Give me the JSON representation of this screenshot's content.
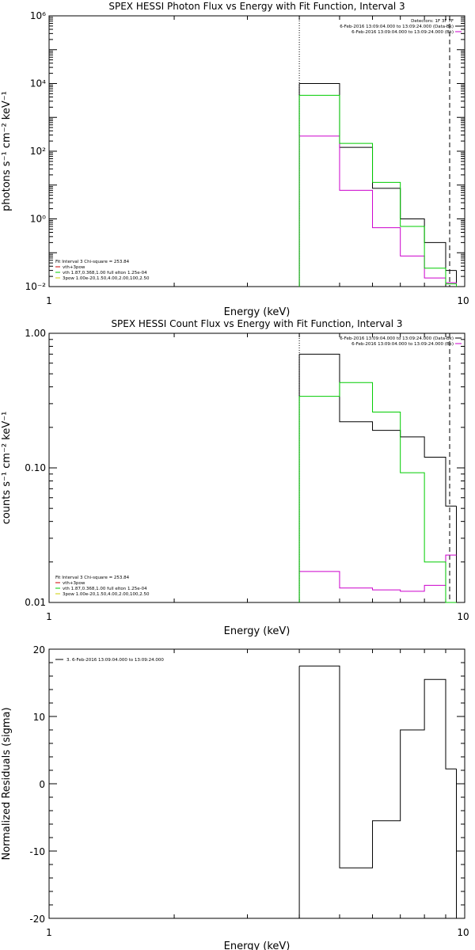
{
  "colors": {
    "data": "#000000",
    "background": "#cc00cc",
    "model": "#00cc00",
    "legend_line1": "#cc0000",
    "legend_line3": "#cccc00"
  },
  "chart_data": [
    {
      "type": "line",
      "title": "SPEX HESSI Photon Flux vs Energy with Fit Function, Interval 3",
      "xlabel": "Energy (keV)",
      "ylabel": "photons s⁻¹ cm⁻² keV⁻¹",
      "xscale": "log",
      "yscale": "log",
      "xlim": [
        1,
        10
      ],
      "ylim": [
        0.01,
        1000000
      ],
      "x_ticks": [
        "1",
        "10"
      ],
      "y_ticks": [
        "10⁻²",
        "10⁰",
        "10²",
        "10⁴",
        "10⁶"
      ],
      "bin_edges": [
        4,
        5,
        6,
        7,
        8,
        9
      ],
      "series": [
        {
          "name": "6-Feb-2016 13:09:04.000 to 13:09:24.000 (Data-Bk)",
          "color": "#000000",
          "values": [
            10000,
            130,
            8,
            1.0,
            0.2,
            0.03
          ],
          "edge_x": [
            4,
            9.55
          ]
        },
        {
          "name": "6-Feb-2016 13:09:04.000 to 13:09:24.000 (Bk)",
          "color": "#cc00cc",
          "values": [
            280,
            7,
            0.55,
            0.08,
            0.018,
            0.013
          ],
          "edge_x": [
            4,
            9.55
          ]
        },
        {
          "name": "vth 1.87,0.368,1.00 full elton 1.25e-04",
          "color": "#00cc00",
          "values": [
            4500,
            170,
            12,
            0.6,
            0.035,
            0.012
          ],
          "edge_x": [
            4,
            9.55
          ]
        }
      ],
      "energy_range_lines": [
        4.0,
        9.2
      ],
      "legend_topright": {
        "header": "Detectors: 1F 3F 7F",
        "lines": [
          {
            "text": "6-Feb-2016 13:09:04.000 to 13:09:24.000 (Data-Bk)",
            "color": "#000000"
          },
          {
            "text": "6-Feb-2016 13:09:04.000 to 13:09:24.000 (Bk)",
            "color": "#cc00cc"
          }
        ]
      },
      "legend_bottomleft": {
        "header": "Fit Interval 3   Chi-square = 253.84",
        "lines": [
          {
            "text": "vth+3pow",
            "color": "#cc0000"
          },
          {
            "text": "vth 1.87,0.368,1.00  full elton 1.25e-04",
            "color": "#00cc00"
          },
          {
            "text": "3pow 1.00e-20,1.50,4.00,2.00,100,2.50",
            "color": "#cccc00"
          }
        ]
      }
    },
    {
      "type": "line",
      "title": "SPEX HESSI Count Flux vs Energy with Fit Function, Interval 3",
      "xlabel": "Energy (keV)",
      "ylabel": "counts s⁻¹ cm⁻² keV⁻¹",
      "xscale": "log",
      "yscale": "log",
      "xlim": [
        1,
        10
      ],
      "ylim": [
        0.01,
        1.0
      ],
      "x_ticks": [
        "1",
        "10"
      ],
      "y_ticks": [
        "0.01",
        "0.10",
        "1.00"
      ],
      "bin_edges": [
        4,
        5,
        6,
        7,
        8,
        9
      ],
      "series": [
        {
          "name": "6-Feb-2016 13:09:04.000 to 13:09:24.000 (Data-Bk)",
          "color": "#000000",
          "values": [
            0.7,
            0.22,
            0.19,
            0.17,
            0.12,
            0.052
          ],
          "edge_x": [
            4,
            9.55
          ]
        },
        {
          "name": "6-Feb-2016 13:09:04.000 to 13:09:24.000 (Bk)",
          "color": "#cc00cc",
          "values": [
            0.017,
            0.0128,
            0.0124,
            0.0121,
            0.0134,
            0.0225
          ],
          "edge_x": [
            null,
            null
          ]
        },
        {
          "name": "vth 1.87,0.368,1.00 full elton 1.25e-04",
          "color": "#00cc00",
          "values": [
            0.34,
            0.43,
            0.26,
            0.092,
            0.02,
            0.01
          ],
          "edge_x": [
            4,
            9.0
          ]
        }
      ],
      "energy_range_lines": [
        4.0,
        9.2
      ],
      "legend_topright": {
        "header": "",
        "lines": [
          {
            "text": "6-Feb-2016 13:09:04.000 to 13:09:24.000 (Data-Bk)",
            "color": "#000000"
          },
          {
            "text": "6-Feb-2016 13:09:04.000 to 13:09:24.000 (Bk)",
            "color": "#cc00cc"
          }
        ]
      },
      "legend_bottomleft": {
        "header": "Fit Interval 3   Chi-square = 253.84",
        "lines": [
          {
            "text": "vth+3pow",
            "color": "#cc0000"
          },
          {
            "text": "vth 1.87,0.368,1.00  full elton 1.25e-04",
            "color": "#00cc00"
          },
          {
            "text": "3pow 1.00e-20,1.50,4.00,2.00,100,2.50",
            "color": "#cccc00"
          }
        ]
      }
    },
    {
      "type": "line",
      "title": "",
      "xlabel": "Energy (keV)",
      "ylabel": "Normalized Residuals (sigma)",
      "xscale": "log",
      "yscale": "linear",
      "xlim": [
        1,
        10
      ],
      "ylim": [
        -20,
        20
      ],
      "x_ticks": [
        "1",
        "10"
      ],
      "y_ticks": [
        "-20",
        "-10",
        "0",
        "10",
        "20"
      ],
      "bin_edges": [
        4,
        5,
        6,
        7,
        8,
        9
      ],
      "series": [
        {
          "name": "3. 6-Feb-2016 13:09:04.000 to 13:09:24.000",
          "color": "#000000",
          "values": [
            17.5,
            -12.5,
            -5.5,
            8.0,
            15.5,
            2.2
          ],
          "edge_x": [
            4,
            9.55
          ]
        }
      ],
      "energy_range_lines": [],
      "legend_topleft": {
        "lines": [
          {
            "text": "3.  6-Feb-2016 13:09:04.000 to 13:09:24.000",
            "color": "#000000"
          }
        ]
      }
    }
  ]
}
